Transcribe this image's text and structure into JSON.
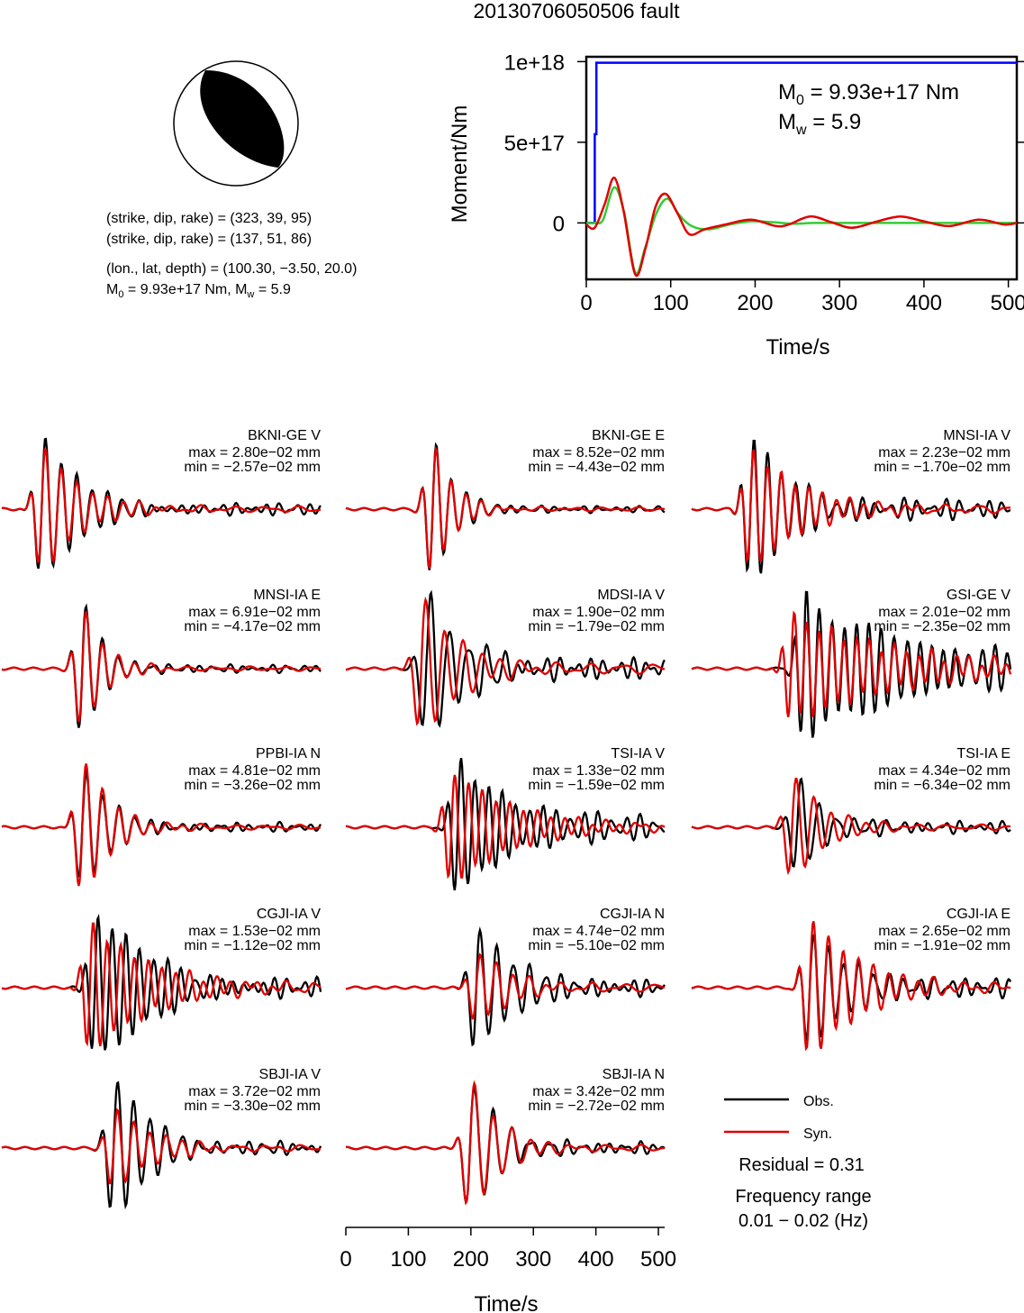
{
  "title": "20130706050506 fault",
  "beachball": {
    "line1": "(strike, dip, rake) = (323, 39, 95)",
    "line2": "(strike, dip, rake) = (137, 51, 86)",
    "line3": "(lon., lat, depth) = (100.30, −3.50, 20.0)",
    "line4_prefix": "M",
    "line4_sub0": "0",
    "line4_mid": " = 9.93e+17 Nm, M",
    "line4_subw": "w",
    "line4_suffix": " = 5.9"
  },
  "moment_panel": {
    "ylabel": "Moment/Nm",
    "xlabel": "Time/s",
    "yticks": [
      "1e+18",
      "5e+17",
      "0"
    ],
    "xticks": [
      "0",
      "100",
      "200",
      "300",
      "400",
      "500"
    ],
    "m0_prefix": "M",
    "m0_sub": "0",
    "m0_value": " = 9.93e+17 Nm",
    "mw_prefix": "M",
    "mw_sub": "w",
    "mw_value": " = 5.9"
  },
  "waveform_axis": {
    "xlabel": "Time/s",
    "xticks": [
      "0",
      "100",
      "200",
      "300",
      "400",
      "500"
    ]
  },
  "legend": {
    "obs_label": "Obs.",
    "syn_label": "Syn.",
    "residual": "Residual = 0.31",
    "freq_title": "Frequency range",
    "freq_value": "0.01 − 0.02 (Hz)"
  },
  "colors": {
    "observed": "#000000",
    "synthetic": "#e00000",
    "cumulative_moment": "#0000ff",
    "moment_rate_green": "#33cc33"
  },
  "chart_data": [
    {
      "type": "line",
      "name": "moment",
      "xlim": [
        0,
        510
      ],
      "ylim": [
        -3.5e+17,
        1.03e+18
      ],
      "series": [
        {
          "name": "cumulative",
          "x": [
            0,
            10,
            10,
            12,
            12,
            510
          ],
          "y": [
            0,
            0,
            5.5e+17,
            5.5e+17,
            9.93e+17,
            9.93e+17
          ]
        },
        {
          "name": "rate_green",
          "x": [
            0,
            10,
            20,
            33,
            45,
            58,
            70,
            83,
            96,
            110,
            125,
            145,
            170,
            195,
            220,
            245,
            270,
            300,
            350,
            400,
            450,
            510
          ],
          "y": [
            0,
            0,
            2e+16,
            2.2e+17,
            6e+16,
            -3.1e+17,
            -1.5e+17,
            6e+16,
            1.5e+17,
            5e+16,
            -2e+16,
            -4e+16,
            -1e+16,
            1e+16,
            5000000000000000.0,
            -5000000000000000.0,
            0,
            0,
            0,
            0,
            0,
            0
          ]
        },
        {
          "name": "rate_red",
          "x": [
            0,
            10,
            22,
            33,
            44,
            58,
            70,
            82,
            94,
            108,
            122,
            140,
            165,
            195,
            225,
            240,
            265,
            290,
            315,
            345,
            372,
            400,
            430,
            465,
            495,
            510
          ],
          "y": [
            -1e+16,
            -3e+16,
            1.2e+17,
            2.8e+17,
            8e+16,
            -3.2e+17,
            -1.6e+17,
            1e+17,
            1.8e+17,
            6e+16,
            -7e+16,
            -4e+16,
            -1e+16,
            2e+16,
            -2e+16,
            -1e+16,
            4e+16,
            5000000000000000.0,
            -3e+16,
            1e+16,
            4e+16,
            1e+16,
            -2e+16,
            2e+16,
            -1e+16,
            0
          ]
        }
      ]
    },
    {
      "type": "line",
      "name": "waveforms",
      "xlim": [
        0,
        510
      ],
      "panels": [
        {
          "station": "BKNI-GE V",
          "max": "max = 2.80e−02 mm",
          "min": "min = −2.57e−02 mm",
          "t0": 65,
          "period": 25,
          "decay": 0.016,
          "amp_obs": 1.0,
          "amp_syn": 0.9,
          "amp_min": 0.92,
          "syn_shift": 0,
          "coda": 0.08
        },
        {
          "station": "BKNI-GE E",
          "max": "max = 8.52e−02 mm",
          "min": "min = −4.43e−02 mm",
          "t0": 140,
          "period": 24,
          "decay": 0.03,
          "amp_obs": 1.0,
          "amp_syn": 0.97,
          "amp_min": 0.52,
          "syn_shift": 0,
          "coda": 0.04
        },
        {
          "station": "MNSI-IA V",
          "max": "max = 2.23e−02 mm",
          "min": "min = −1.70e−02 mm",
          "t0": 95,
          "period": 22,
          "decay": 0.012,
          "amp_obs": 1.0,
          "amp_syn": 0.85,
          "amp_min": 0.76,
          "syn_shift": 0,
          "coda": 0.12
        },
        {
          "station": "MNSI-IA E",
          "max": "max = 6.91e−02 mm",
          "min": "min = −4.17e−02 mm",
          "t0": 130,
          "period": 26,
          "decay": 0.028,
          "amp_obs": 1.0,
          "amp_syn": 0.9,
          "amp_min": 0.6,
          "syn_shift": 0,
          "coda": 0.05
        },
        {
          "station": "MDSI-IA V",
          "max": "max = 1.90e−02 mm",
          "min": "min = −1.79e−02 mm",
          "t0": 130,
          "period": 30,
          "decay": 0.015,
          "amp_obs": 1.0,
          "amp_syn": 1.0,
          "amp_min": 0.94,
          "syn_shift": -8,
          "coda": 0.15
        },
        {
          "station": "GSI-GE V",
          "max": "max = 2.01e−02 mm",
          "min": "min = −2.35e−02 mm",
          "t0": 180,
          "period": 20,
          "decay": 0.006,
          "amp_obs": 1.0,
          "amp_syn": 0.75,
          "amp_min": 1.0,
          "syn_shift": -20,
          "coda": 0.2
        },
        {
          "station": "PPBI-IA N",
          "max": "max = 4.81e−02 mm",
          "min": "min = −3.26e−02 mm",
          "t0": 130,
          "period": 26,
          "decay": 0.022,
          "amp_obs": 0.85,
          "amp_syn": 1.0,
          "amp_min": 0.68,
          "syn_shift": 0,
          "coda": 0.06
        },
        {
          "station": "TSI-IA V",
          "max": "max = 1.33e−02 mm",
          "min": "min = −1.59e−02 mm",
          "t0": 180,
          "period": 22,
          "decay": 0.01,
          "amp_obs": 1.0,
          "amp_syn": 0.8,
          "amp_min": 1.0,
          "syn_shift": -10,
          "coda": 0.12
        },
        {
          "station": "TSI-IA E",
          "max": "max = 4.34e−02 mm",
          "min": "min = −6.34e−02 mm",
          "t0": 170,
          "period": 28,
          "decay": 0.02,
          "amp_obs": 0.68,
          "amp_syn": 0.8,
          "amp_min": 1.0,
          "syn_shift": -8,
          "coda": 0.08
        },
        {
          "station": "CGJI-IA V",
          "max": "max = 1.53e−02 mm",
          "min": "min = −1.12e−02 mm",
          "t0": 150,
          "period": 22,
          "decay": 0.01,
          "amp_obs": 1.0,
          "amp_syn": 0.9,
          "amp_min": 0.73,
          "syn_shift": -8,
          "coda": 0.15
        },
        {
          "station": "CGJI-IA N",
          "max": "max = 4.74e−02 mm",
          "min": "min = −5.10e−02 mm",
          "t0": 210,
          "period": 26,
          "decay": 0.018,
          "amp_obs": 1.0,
          "amp_syn": 0.55,
          "amp_min": 1.0,
          "syn_shift": 0,
          "coda": 0.12
        },
        {
          "station": "CGJI-IA E",
          "max": "max = 2.65e−02 mm",
          "min": "min = −1.91e−02 mm",
          "t0": 190,
          "period": 24,
          "decay": 0.012,
          "amp_obs": 0.85,
          "amp_syn": 1.0,
          "amp_min": 0.72,
          "syn_shift": 0,
          "coda": 0.12
        },
        {
          "station": "SBJI-IA V",
          "max": "max = 3.72e−02 mm",
          "min": "min = −3.30e−02 mm",
          "t0": 180,
          "period": 26,
          "decay": 0.016,
          "amp_obs": 1.0,
          "amp_syn": 0.6,
          "amp_min": 0.89,
          "syn_shift": 0,
          "coda": 0.08
        },
        {
          "station": "SBJI-IA N",
          "max": "max = 3.42e−02 mm",
          "min": "min = −2.72e−02 mm",
          "t0": 200,
          "period": 30,
          "decay": 0.02,
          "amp_obs": 1.0,
          "amp_syn": 1.0,
          "amp_min": 0.8,
          "syn_shift": 0,
          "coda": 0.08
        }
      ]
    }
  ]
}
